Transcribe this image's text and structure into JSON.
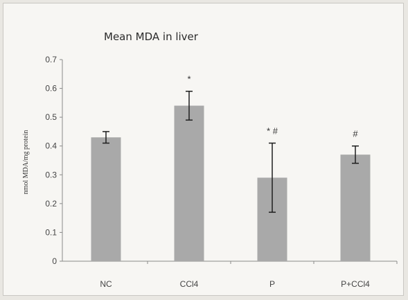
{
  "chart_data": {
    "type": "bar",
    "title": "Mean MDA in liver",
    "ylabel": "nmol MDA/mg protein",
    "xlabel": "",
    "ylim": [
      0,
      0.7
    ],
    "yticks": [
      0,
      0.1,
      0.2,
      0.3,
      0.4,
      0.5,
      0.6,
      0.7
    ],
    "ytick_labels": [
      "0",
      "0.1",
      "0.2",
      "0.3",
      "0.4",
      "0.5",
      "0.6",
      "0.7"
    ],
    "categories": [
      "NC",
      "CCl4",
      "P",
      "P+CCl4"
    ],
    "values": [
      0.43,
      0.54,
      0.29,
      0.37
    ],
    "errors": [
      0.02,
      0.05,
      0.12,
      0.03
    ],
    "annotations": [
      "",
      "*",
      "* #",
      "#"
    ],
    "grid": false,
    "legend": "none",
    "bar_color": "#a9a9a9"
  }
}
